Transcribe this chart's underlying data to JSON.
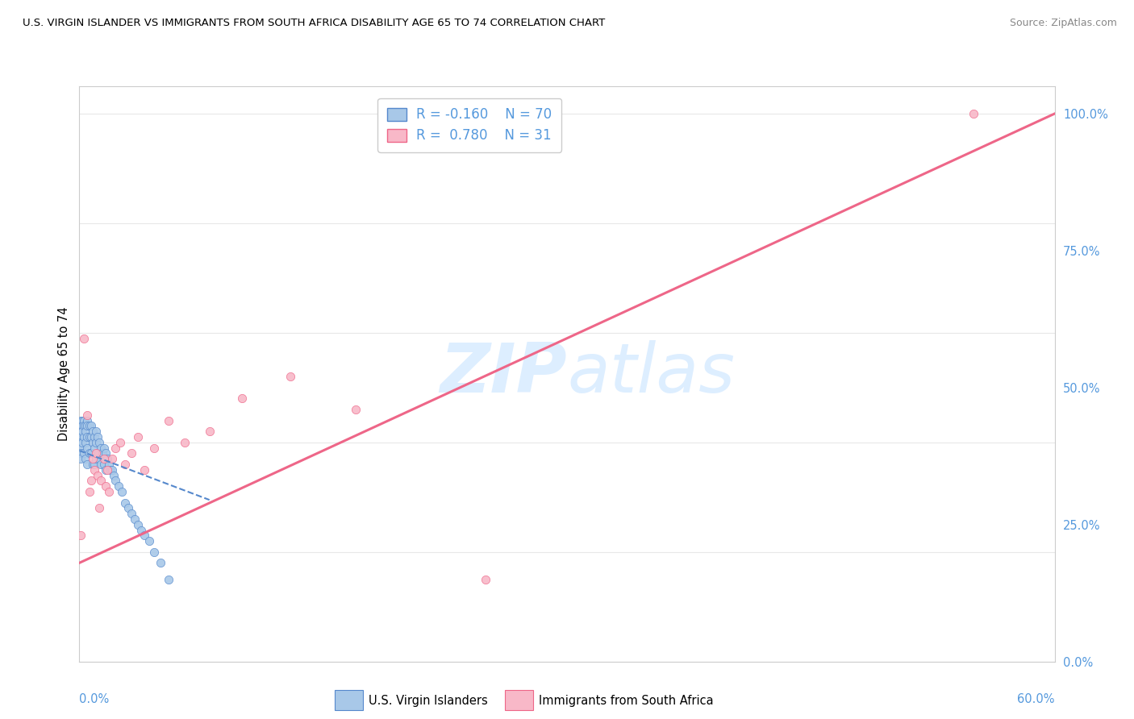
{
  "title": "U.S. VIRGIN ISLANDER VS IMMIGRANTS FROM SOUTH AFRICA DISABILITY AGE 65 TO 74 CORRELATION CHART",
  "source": "Source: ZipAtlas.com",
  "ylabel": "Disability Age 65 to 74",
  "color_blue": "#a8c8e8",
  "color_pink": "#f8b8c8",
  "line_blue": "#5588cc",
  "line_pink": "#ee6688",
  "scatter_blue_x": [
    0.001,
    0.001,
    0.001,
    0.001,
    0.001,
    0.001,
    0.001,
    0.001,
    0.002,
    0.002,
    0.002,
    0.002,
    0.003,
    0.003,
    0.003,
    0.003,
    0.004,
    0.004,
    0.004,
    0.004,
    0.005,
    0.005,
    0.005,
    0.005,
    0.005,
    0.006,
    0.006,
    0.006,
    0.007,
    0.007,
    0.007,
    0.008,
    0.008,
    0.008,
    0.009,
    0.009,
    0.009,
    0.01,
    0.01,
    0.01,
    0.011,
    0.011,
    0.012,
    0.012,
    0.013,
    0.013,
    0.014,
    0.015,
    0.015,
    0.016,
    0.016,
    0.017,
    0.018,
    0.019,
    0.02,
    0.021,
    0.022,
    0.024,
    0.026,
    0.028,
    0.03,
    0.032,
    0.034,
    0.036,
    0.038,
    0.04,
    0.043,
    0.046,
    0.05,
    0.055
  ],
  "scatter_blue_y": [
    0.44,
    0.43,
    0.42,
    0.41,
    0.4,
    0.39,
    0.38,
    0.37,
    0.44,
    0.43,
    0.42,
    0.4,
    0.44,
    0.43,
    0.41,
    0.38,
    0.43,
    0.42,
    0.4,
    0.37,
    0.44,
    0.43,
    0.41,
    0.39,
    0.36,
    0.43,
    0.41,
    0.38,
    0.43,
    0.41,
    0.38,
    0.42,
    0.4,
    0.36,
    0.41,
    0.39,
    0.36,
    0.42,
    0.4,
    0.37,
    0.41,
    0.38,
    0.4,
    0.37,
    0.39,
    0.36,
    0.38,
    0.39,
    0.36,
    0.38,
    0.35,
    0.37,
    0.36,
    0.35,
    0.35,
    0.34,
    0.33,
    0.32,
    0.31,
    0.29,
    0.28,
    0.27,
    0.26,
    0.25,
    0.24,
    0.23,
    0.22,
    0.2,
    0.18,
    0.15
  ],
  "scatter_pink_x": [
    0.001,
    0.003,
    0.005,
    0.006,
    0.007,
    0.008,
    0.009,
    0.01,
    0.011,
    0.012,
    0.013,
    0.015,
    0.016,
    0.017,
    0.018,
    0.02,
    0.022,
    0.025,
    0.028,
    0.032,
    0.036,
    0.04,
    0.046,
    0.055,
    0.065,
    0.08,
    0.1,
    0.13,
    0.17,
    0.25,
    0.55
  ],
  "scatter_pink_y": [
    0.23,
    0.59,
    0.45,
    0.31,
    0.33,
    0.37,
    0.35,
    0.38,
    0.34,
    0.28,
    0.33,
    0.37,
    0.32,
    0.35,
    0.31,
    0.37,
    0.39,
    0.4,
    0.36,
    0.38,
    0.41,
    0.35,
    0.39,
    0.44,
    0.4,
    0.42,
    0.48,
    0.52,
    0.46,
    0.15,
    1.0
  ],
  "blue_line_x": [
    0.0,
    0.08
  ],
  "blue_line_y": [
    0.385,
    0.295
  ],
  "pink_line_x": [
    0.0,
    0.6
  ],
  "pink_line_y": [
    0.18,
    1.0
  ],
  "xlim": [
    0.0,
    0.6
  ],
  "ylim": [
    0.0,
    1.05
  ],
  "bg_color": "#ffffff",
  "grid_color": "#e8e8e8",
  "axis_label_color": "#5599dd",
  "watermark_color": "#ddeeff"
}
